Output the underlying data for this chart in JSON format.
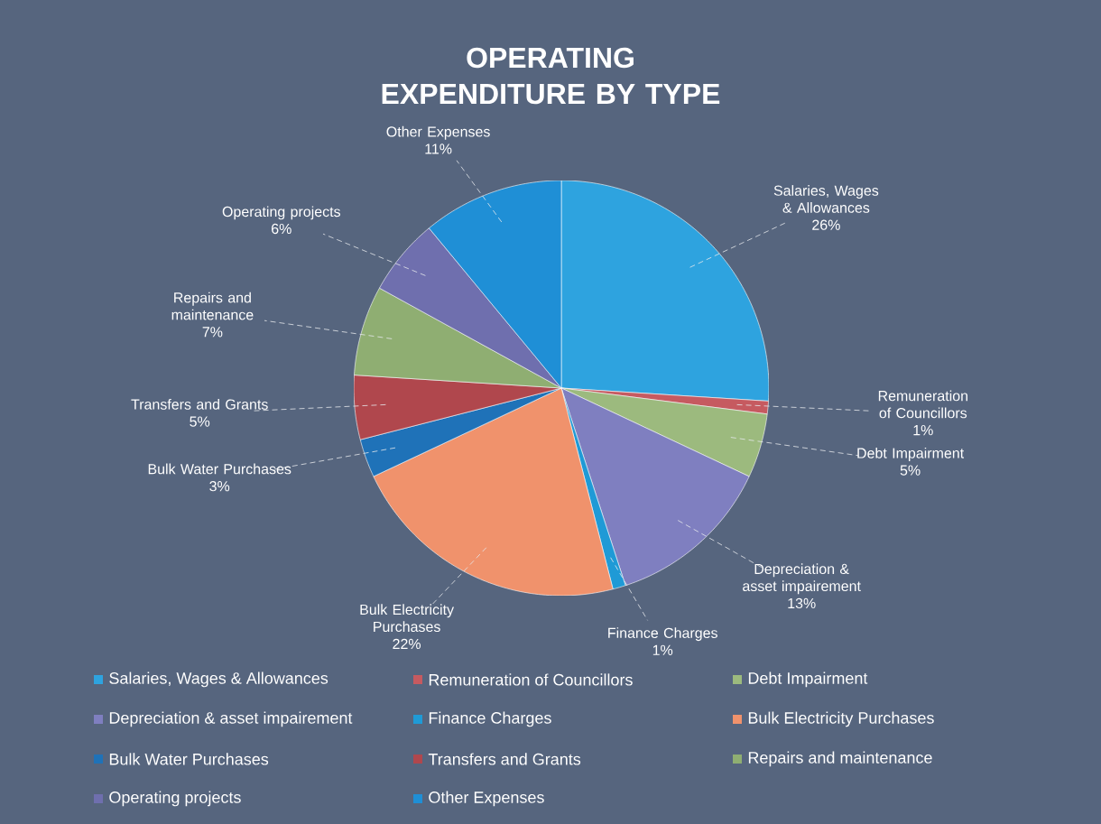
{
  "chart_data": {
    "type": "pie",
    "title": "OPERATING EXPENDITURE BY TYPE",
    "categories": [
      "Salaries, Wages & Allowances",
      "Remuneration of Councillors",
      "Debt Impairment",
      "Depreciation & asset impairement",
      "Finance Charges",
      "Bulk Electricity Purchases",
      "Bulk Water Purchases",
      "Transfers and Grants",
      "Repairs and maintenance",
      "Operating projects",
      "Other Expenses"
    ],
    "values": [
      26,
      1,
      5,
      13,
      1,
      22,
      3,
      5,
      7,
      6,
      11
    ],
    "value_labels": [
      "26%",
      "1%",
      "5%",
      "13%",
      "1%",
      "22%",
      "3%",
      "5%",
      "7%",
      "6%",
      "11%"
    ],
    "colors": [
      "#2ea3df",
      "#c65a60",
      "#9cba7e",
      "#7f7fc0",
      "#1f9ad6",
      "#f0926c",
      "#1f72b8",
      "#b0474d",
      "#8fae72",
      "#6f6fae",
      "#1f8fd6"
    ],
    "legend": "bottom"
  }
}
